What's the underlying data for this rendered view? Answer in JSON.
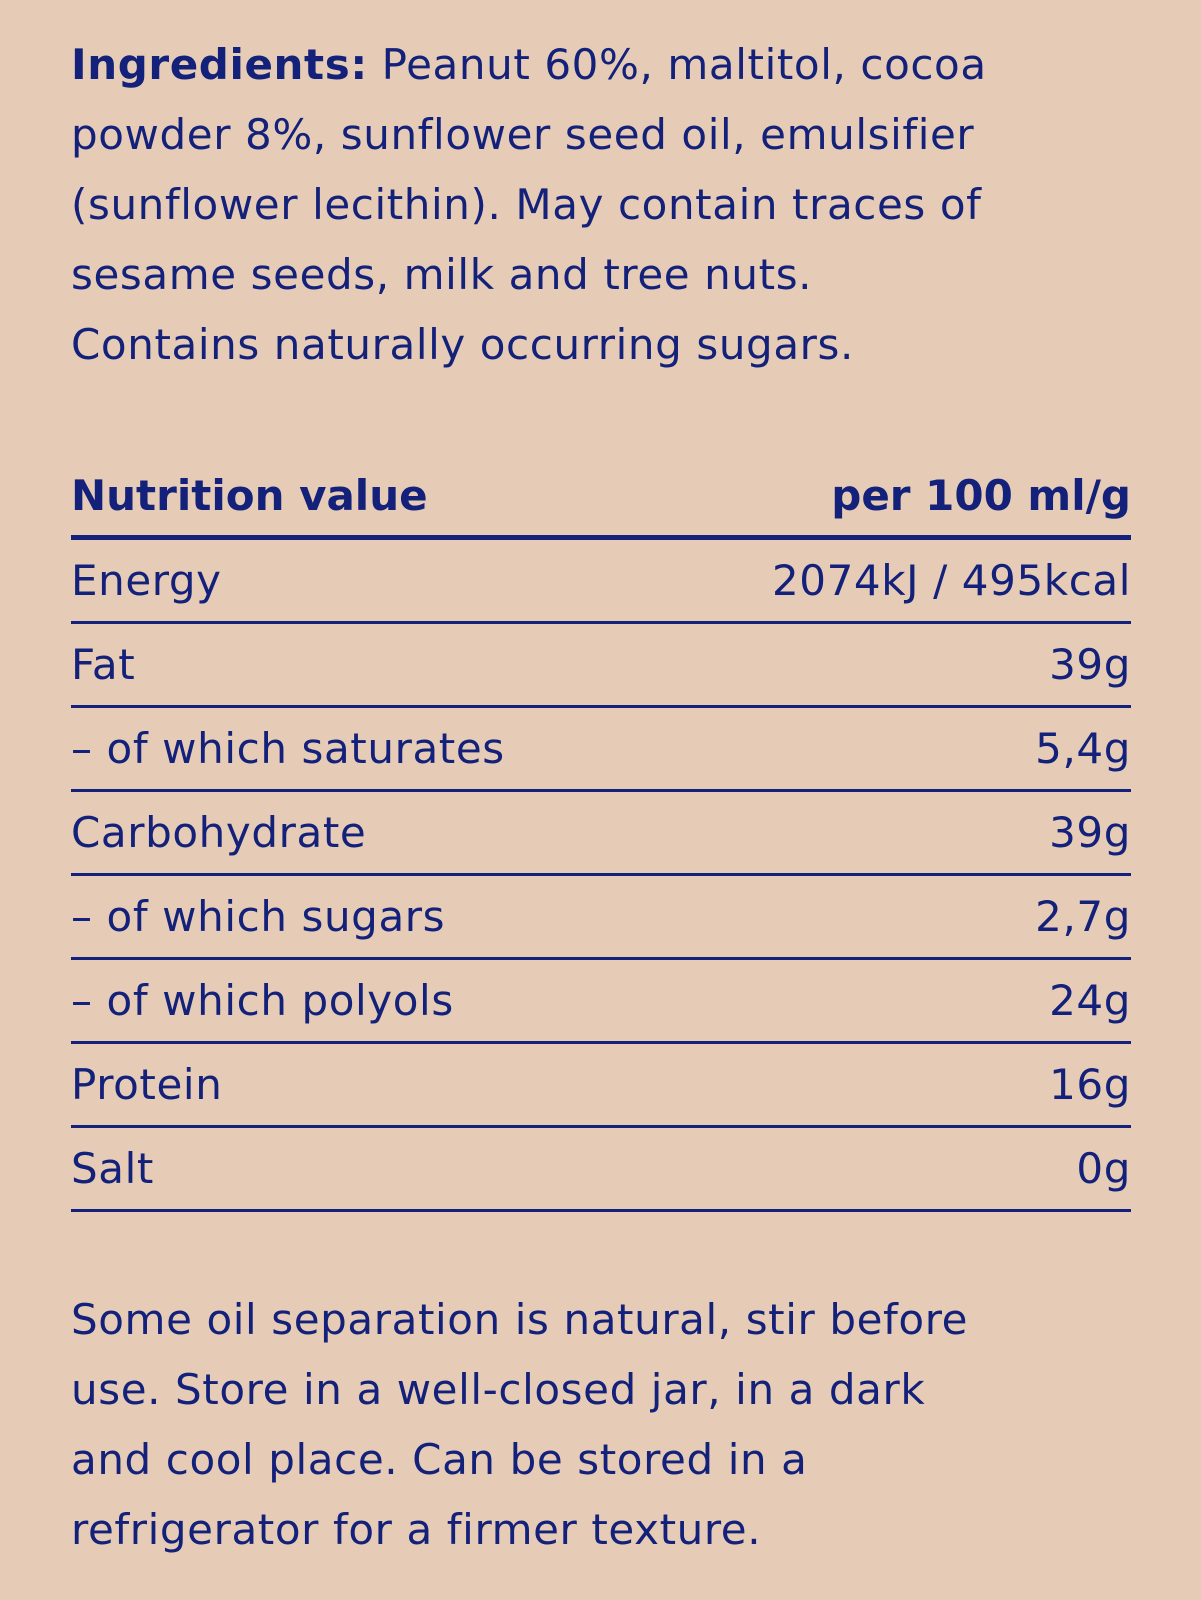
{
  "ingredients": {
    "label": "Ingredients:",
    "lines": [
      " Peanut 60%, maltitol, cocoa",
      "powder 8%, sunflower seed oil, emulsifier",
      "(sunflower lecithin). May contain traces of",
      "sesame seeds, milk and tree nuts.",
      "Contains naturally occurring sugars."
    ]
  },
  "nutrition": {
    "header": {
      "label": "Nutrition value",
      "value": "per 100 ml/g"
    },
    "rows": [
      {
        "label": "Energy",
        "value": "2074kJ / 495kcal"
      },
      {
        "label": "Fat",
        "value": "39g"
      },
      {
        "label": "– of which saturates",
        "value": "5,4g"
      },
      {
        "label": "Carbohydrate",
        "value": "39g"
      },
      {
        "label": "– of which sugars",
        "value": "2,7g"
      },
      {
        "label": "– of which polyols",
        "value": "24g"
      },
      {
        "label": "Protein",
        "value": "16g"
      },
      {
        "label": "Salt",
        "value": "0g"
      }
    ]
  },
  "storage": {
    "lines": [
      "Some oil separation is natural, stir before",
      "use. Store in a well-closed jar, in a dark",
      "and cool place. Can be stored in a",
      "refrigerator for a firmer texture."
    ]
  },
  "colors": {
    "background": "#E6CCB6",
    "text": "#13217A"
  }
}
